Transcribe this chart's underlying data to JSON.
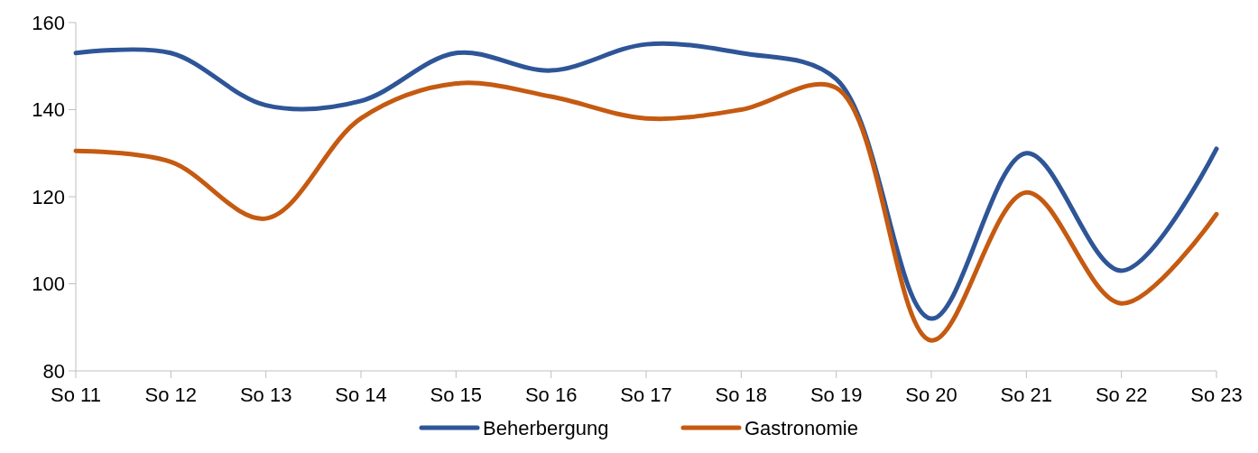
{
  "chart_data": {
    "type": "line",
    "categories": [
      "So 11",
      "So 12",
      "So 13",
      "So 14",
      "So 15",
      "So 16",
      "So 17",
      "So 18",
      "So 19",
      "So 20",
      "So 21",
      "So 22",
      "So 23"
    ],
    "series": [
      {
        "name": "Beherbergung",
        "color": "#2e5597",
        "values": [
          153,
          153,
          141,
          142,
          153,
          149,
          155,
          153,
          147,
          92,
          130,
          103,
          131
        ]
      },
      {
        "name": "Gastronomie",
        "color": "#c55a11",
        "values": [
          130.5,
          128,
          115,
          138,
          146,
          143,
          138,
          140,
          145,
          87,
          121,
          95.5,
          116
        ]
      }
    ],
    "ylim": [
      80,
      160
    ],
    "yticks": [
      80,
      100,
      120,
      140,
      160
    ],
    "grid": false,
    "legend": "bottom",
    "marker": "none",
    "line_style": "solid"
  }
}
